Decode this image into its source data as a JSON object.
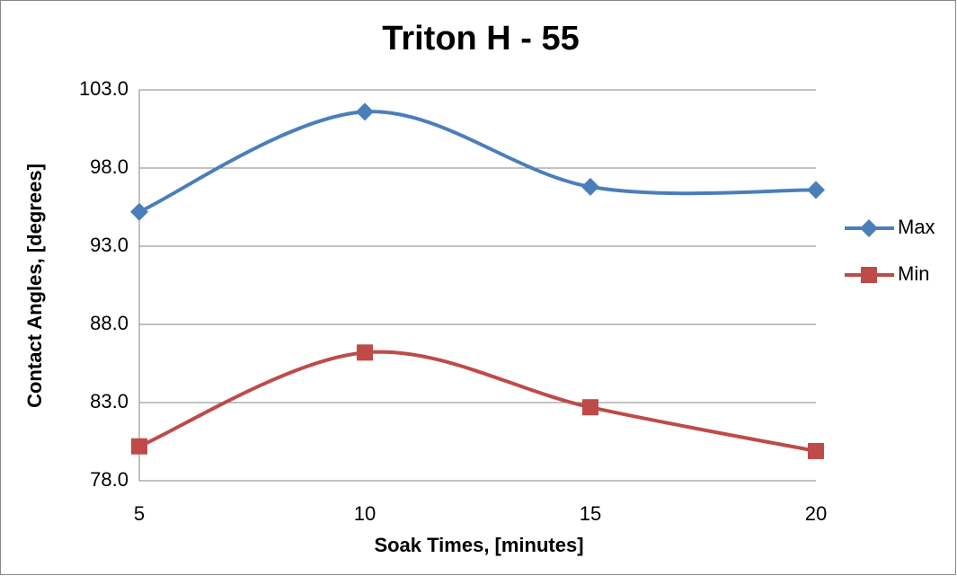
{
  "chart_data": {
    "type": "line",
    "title": "Triton H - 55",
    "x_label": "Soak Times, [minutes]",
    "y_label": "Contact Angles, [degrees]",
    "categories": [
      "5",
      "10",
      "15",
      "20"
    ],
    "series": [
      {
        "name": "Max",
        "color": "#4a7ebb",
        "marker": "diamond",
        "values": [
          95.2,
          101.6,
          96.8,
          96.6
        ]
      },
      {
        "name": "Min",
        "color": "#be4b48",
        "marker": "square",
        "values": [
          80.2,
          86.2,
          82.7,
          79.9
        ]
      }
    ],
    "ylim": [
      78,
      103
    ],
    "yticks": [
      {
        "value": 78,
        "label": "78.0"
      },
      {
        "value": 83,
        "label": "83.0"
      },
      {
        "value": 88,
        "label": "88.0"
      },
      {
        "value": 93,
        "label": "93.0"
      },
      {
        "value": 98,
        "label": "98.0"
      },
      {
        "value": 103,
        "label": "103.0"
      }
    ],
    "grid": true,
    "smooth": true,
    "legend": "right"
  }
}
